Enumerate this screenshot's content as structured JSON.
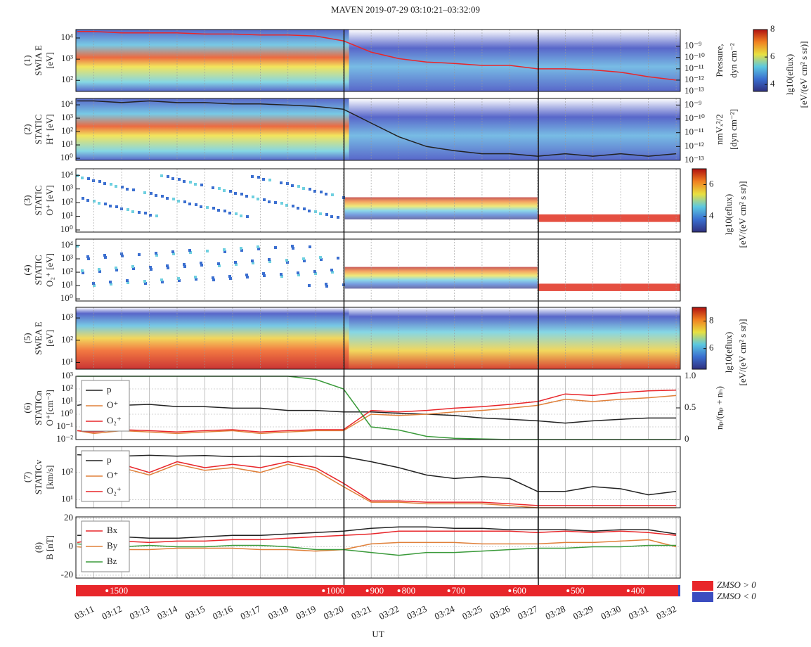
{
  "title": "MAVEN 2019-07-29 03:10:21–03:32:09",
  "xlabel": "UT",
  "time_axis": {
    "xlim": [
      10.35,
      32.15
    ],
    "xticks": [
      {
        "value": 11,
        "label": "03:11"
      },
      {
        "value": 12,
        "label": "03:12"
      },
      {
        "value": 13,
        "label": "03:13"
      },
      {
        "value": 14,
        "label": "03:14"
      },
      {
        "value": 15,
        "label": "03:15"
      },
      {
        "value": 16,
        "label": "03:16"
      },
      {
        "value": 17,
        "label": "03:17"
      },
      {
        "value": 18,
        "label": "03:18"
      },
      {
        "value": 19,
        "label": "03:19"
      },
      {
        "value": 20,
        "label": "03:20"
      },
      {
        "value": 21,
        "label": "03:21"
      },
      {
        "value": 22,
        "label": "03:22"
      },
      {
        "value": 23,
        "label": "03:23"
      },
      {
        "value": 24,
        "label": "03:24"
      },
      {
        "value": 25,
        "label": "03:25"
      },
      {
        "value": 26,
        "label": "03:26"
      },
      {
        "value": 27,
        "label": "03:27"
      },
      {
        "value": 28,
        "label": "03:28"
      },
      {
        "value": 29,
        "label": "03:29"
      },
      {
        "value": 30,
        "label": "03:30"
      },
      {
        "value": 31,
        "label": "03:31"
      },
      {
        "value": 32,
        "label": "03:32"
      }
    ]
  },
  "event_times": [
    20.02,
    27.03
  ],
  "orbit_bar": {
    "marks": [
      {
        "x": 11.47,
        "altitude": 1500
      },
      {
        "x": 19.28,
        "altitude": 1000
      },
      {
        "x": 20.86,
        "altitude": 900
      },
      {
        "x": 22.0,
        "altitude": 800
      },
      {
        "x": 23.8,
        "altitude": 700
      },
      {
        "x": 26.0,
        "altitude": 600
      },
      {
        "x": 28.1,
        "altitude": 500
      },
      {
        "x": 30.27,
        "altitude": 400
      }
    ],
    "legend": [
      {
        "label": "ZMSO > 0",
        "color": "#e8262a"
      },
      {
        "label": "ZMSO < 0",
        "color": "#3b4cc0"
      }
    ]
  },
  "chart_data": [
    {
      "type": "spectrogram",
      "ylabel": [
        "(1)",
        "SWIA E",
        "[eV]"
      ],
      "log_scale": true,
      "ylim": [
        30,
        25000
      ],
      "yticks": [
        {
          "value": 100,
          "label": "10²"
        },
        {
          "value": 1000,
          "label": "10³"
        },
        {
          "value": 10000,
          "label": "10⁴"
        }
      ],
      "y2label": [
        "Pressure,",
        "dyn cm⁻²"
      ],
      "y2lim": [
        1e-13,
        3e-08
      ],
      "y2ticks": [
        {
          "value": 1e-09,
          "label": "10⁻⁹"
        },
        {
          "value": 1e-10,
          "label": "10⁻¹⁰"
        },
        {
          "value": 1e-11,
          "label": "10⁻¹¹"
        },
        {
          "value": 1e-12,
          "label": "10⁻¹²"
        },
        {
          "value": 1e-13,
          "label": "10⁻¹³"
        }
      ],
      "colorbar": {
        "label": [
          "lg10(eflux)",
          "[eV/(eV cm² s sr)]"
        ],
        "clim": [
          3.5,
          8
        ],
        "ticks": [
          4,
          6,
          8
        ]
      },
      "x": [
        10.4,
        11,
        12,
        13,
        14,
        15,
        16,
        17,
        18,
        19,
        20,
        21,
        22,
        23,
        24,
        25,
        26,
        27,
        28,
        29,
        30,
        31,
        32
      ],
      "series": [
        {
          "color": "#e8262a",
          "axis": "y2",
          "values": [
            2e-08,
            2e-08,
            1.5e-08,
            1.5e-08,
            1.5e-08,
            1.2e-08,
            1.2e-08,
            1e-08,
            1e-08,
            8e-09,
            3e-09,
            3e-10,
            8e-11,
            4e-11,
            3e-11,
            2e-11,
            2e-11,
            1e-11,
            1e-11,
            8e-12,
            5e-12,
            2e-12,
            1e-12
          ]
        }
      ]
    },
    {
      "type": "spectrogram",
      "ylabel": [
        "(2)",
        "STATIC",
        "H⁺ [eV]"
      ],
      "log_scale": true,
      "ylim": [
        0.7,
        30000
      ],
      "yticks": [
        {
          "value": 1,
          "label": "10⁰"
        },
        {
          "value": 10,
          "label": "10¹"
        },
        {
          "value": 100,
          "label": "10²"
        },
        {
          "value": 1000,
          "label": "10³"
        },
        {
          "value": 10000,
          "label": "10⁴"
        }
      ],
      "y2label": [
        "nmVₓ²/2",
        "[dyn cm⁻²]"
      ],
      "y2lim": [
        1e-13,
        3e-09
      ],
      "y2ticks": [
        {
          "value": 1e-09,
          "label": "10⁻⁹"
        },
        {
          "value": 1e-10,
          "label": "10⁻¹⁰"
        },
        {
          "value": 1e-11,
          "label": "10⁻¹¹"
        },
        {
          "value": 1e-12,
          "label": "10⁻¹²"
        },
        {
          "value": 1e-13,
          "label": "10⁻¹³"
        }
      ],
      "x": [
        10.4,
        11,
        12,
        13,
        14,
        15,
        16,
        17,
        18,
        19,
        20,
        21,
        22,
        23,
        24,
        25,
        26,
        27,
        28,
        29,
        30,
        31,
        32
      ],
      "series": [
        {
          "color": "#222222",
          "axis": "y2",
          "values": [
            2e-09,
            2e-09,
            1.5e-09,
            2e-09,
            1.5e-09,
            1.5e-09,
            1.2e-09,
            1.2e-09,
            1e-09,
            8e-10,
            5e-10,
            5e-11,
            5e-12,
            1e-12,
            5e-13,
            3e-13,
            3e-13,
            2e-13,
            3e-13,
            2e-13,
            3e-13,
            2e-13,
            3e-13
          ]
        }
      ]
    },
    {
      "type": "spectrogram",
      "ylabel": [
        "(3)",
        "STATIC",
        "O⁺ [eV]"
      ],
      "log_scale": true,
      "ylim": [
        0.7,
        30000
      ],
      "yticks": [
        {
          "value": 1,
          "label": "10⁰"
        },
        {
          "value": 10,
          "label": "10¹"
        },
        {
          "value": 100,
          "label": "10²"
        },
        {
          "value": 1000,
          "label": "10³"
        },
        {
          "value": 10000,
          "label": "10⁴"
        }
      ],
      "colorbar": {
        "label": [
          "lg10(eflux)",
          "[eV/(eV cm² s sr)]"
        ],
        "clim": [
          3,
          7
        ],
        "ticks": [
          4,
          6
        ]
      }
    },
    {
      "type": "spectrogram",
      "ylabel": [
        "(4)",
        "STATIC",
        "O₂⁺ [eV]"
      ],
      "log_scale": true,
      "ylim": [
        0.7,
        30000
      ],
      "yticks": [
        {
          "value": 1,
          "label": "10⁰"
        },
        {
          "value": 10,
          "label": "10¹"
        },
        {
          "value": 100,
          "label": "10²"
        },
        {
          "value": 1000,
          "label": "10³"
        },
        {
          "value": 10000,
          "label": "10⁴"
        }
      ]
    },
    {
      "type": "spectrogram",
      "ylabel": [
        "(5)",
        "SWEA E",
        "[eV]"
      ],
      "log_scale": true,
      "ylim": [
        5,
        3000
      ],
      "yticks": [
        {
          "value": 10,
          "label": "10¹"
        },
        {
          "value": 100,
          "label": "10²"
        },
        {
          "value": 1000,
          "label": "10³"
        }
      ],
      "colorbar": {
        "label": [
          "lg10(eflux)",
          "[eV/(eV cm² s sr)]"
        ],
        "clim": [
          4.5,
          9
        ],
        "ticks": [
          6,
          8
        ]
      }
    },
    {
      "type": "line",
      "ylabel": [
        "(6)",
        "STATICn",
        "O⁺[cm⁻³]"
      ],
      "log_scale": true,
      "ylim": [
        0.01,
        1000
      ],
      "grid": true,
      "yticks": [
        {
          "value": 0.01,
          "label": "10⁻²"
        },
        {
          "value": 0.1,
          "label": "10⁻¹"
        },
        {
          "value": 1,
          "label": "10⁰"
        },
        {
          "value": 10,
          "label": "10¹"
        },
        {
          "value": 100,
          "label": "10²"
        },
        {
          "value": 1000,
          "label": "10³"
        }
      ],
      "y2label": [
        "nₚ/(nₚ + nₕ)"
      ],
      "y2lim": [
        0,
        1
      ],
      "y2ticks": [
        0,
        0.5,
        {
          "value": 1,
          "label": "1.0"
        }
      ],
      "x": [
        10.4,
        11,
        12,
        13,
        14,
        15,
        16,
        17,
        18,
        19,
        20,
        21,
        22,
        23,
        24,
        25,
        26,
        27,
        28,
        29,
        30,
        31,
        32
      ],
      "series": [
        {
          "name": "p",
          "color": "#222222",
          "values": [
            5,
            8,
            5,
            6,
            4,
            4,
            3,
            3,
            2,
            2,
            1.5,
            1.5,
            1.2,
            1,
            0.8,
            0.5,
            0.4,
            0.3,
            0.2,
            0.3,
            0.4,
            0.5,
            0.5
          ]
        },
        {
          "name": "O⁺",
          "color": "#e0803a",
          "values": [
            0.05,
            0.03,
            0.05,
            0.04,
            0.03,
            0.04,
            0.05,
            0.03,
            0.04,
            0.05,
            0.05,
            1,
            0.8,
            1,
            1.5,
            2,
            3,
            5,
            15,
            10,
            15,
            20,
            30
          ]
        },
        {
          "name": "O₂⁺",
          "color": "#e8262a",
          "values": [
            0.05,
            0.04,
            0.06,
            0.05,
            0.04,
            0.05,
            0.06,
            0.04,
            0.05,
            0.06,
            0.06,
            2,
            1.5,
            2,
            3,
            4,
            6,
            10,
            40,
            30,
            50,
            70,
            80
          ]
        },
        {
          "color": "#3a9a3a",
          "axis": "y2",
          "values": [
            1,
            1,
            1,
            1,
            1,
            1,
            1,
            1,
            1,
            0.95,
            0.8,
            0.2,
            0.15,
            0.05,
            0.02,
            0.01,
            0,
            0,
            0,
            0,
            0,
            0,
            0
          ]
        }
      ]
    },
    {
      "type": "line",
      "ylabel": [
        "(7)",
        "STATICv",
        "[km/s]"
      ],
      "log_scale": true,
      "ylim": [
        5,
        900
      ],
      "grid": true,
      "yticks": [
        {
          "value": 10,
          "label": "10¹"
        },
        {
          "value": 100,
          "label": "10²"
        }
      ],
      "x": [
        10.4,
        11,
        12,
        13,
        14,
        15,
        16,
        17,
        18,
        19,
        20,
        21,
        22,
        23,
        24,
        25,
        26,
        27,
        28,
        29,
        30,
        31,
        32
      ],
      "series": [
        {
          "name": "p",
          "color": "#222222",
          "values": [
            450,
            420,
            400,
            430,
            400,
            420,
            380,
            400,
            380,
            400,
            380,
            250,
            150,
            80,
            60,
            70,
            60,
            20,
            20,
            30,
            25,
            15,
            20
          ]
        },
        {
          "name": "O⁺",
          "color": "#e0803a",
          "values": [
            null,
            100,
            150,
            80,
            200,
            120,
            150,
            100,
            200,
            120,
            30,
            8,
            8,
            7,
            7,
            7,
            6,
            5,
            5,
            5,
            5,
            5,
            5
          ]
        },
        {
          "name": "O₂⁺",
          "color": "#e8262a",
          "values": [
            null,
            120,
            200,
            100,
            250,
            150,
            200,
            150,
            250,
            150,
            40,
            9,
            9,
            8,
            8,
            8,
            7,
            6,
            6,
            6,
            6,
            6,
            6
          ]
        }
      ]
    },
    {
      "type": "line",
      "ylabel": [
        "(8)",
        "B [nT]"
      ],
      "ylim": [
        -22,
        21
      ],
      "grid": true,
      "yticks": [
        -20,
        0,
        20
      ],
      "x": [
        10.4,
        11,
        12,
        13,
        14,
        15,
        16,
        17,
        18,
        19,
        20,
        21,
        22,
        23,
        24,
        25,
        26,
        27,
        28,
        29,
        30,
        31,
        32
      ],
      "series": [
        {
          "color": "#222222",
          "values": [
            8,
            8,
            7,
            6,
            6,
            7,
            8,
            8,
            9,
            10,
            11,
            13,
            14,
            14,
            13,
            13,
            12,
            12,
            12,
            11,
            12,
            12,
            9
          ]
        },
        {
          "name": "Bx",
          "color": "#e8262a",
          "values": [
            3,
            5,
            4,
            3,
            4,
            4,
            5,
            5,
            6,
            7,
            8,
            9,
            11,
            11,
            11,
            11,
            11,
            10,
            11,
            10,
            11,
            10,
            8
          ]
        },
        {
          "name": "By",
          "color": "#e0803a",
          "values": [
            0,
            -1,
            -2,
            -2,
            -1,
            -1,
            -1,
            -2,
            -2,
            -3,
            -2,
            2,
            3,
            3,
            3,
            2,
            2,
            2,
            3,
            3,
            4,
            5,
            0
          ]
        },
        {
          "name": "Bz",
          "color": "#3a9a3a",
          "values": [
            2,
            1,
            0,
            1,
            0,
            0,
            1,
            1,
            0,
            -2,
            -2,
            -4,
            -6,
            -4,
            -4,
            -3,
            -2,
            -1,
            -1,
            0,
            0,
            1,
            1
          ]
        }
      ]
    }
  ]
}
